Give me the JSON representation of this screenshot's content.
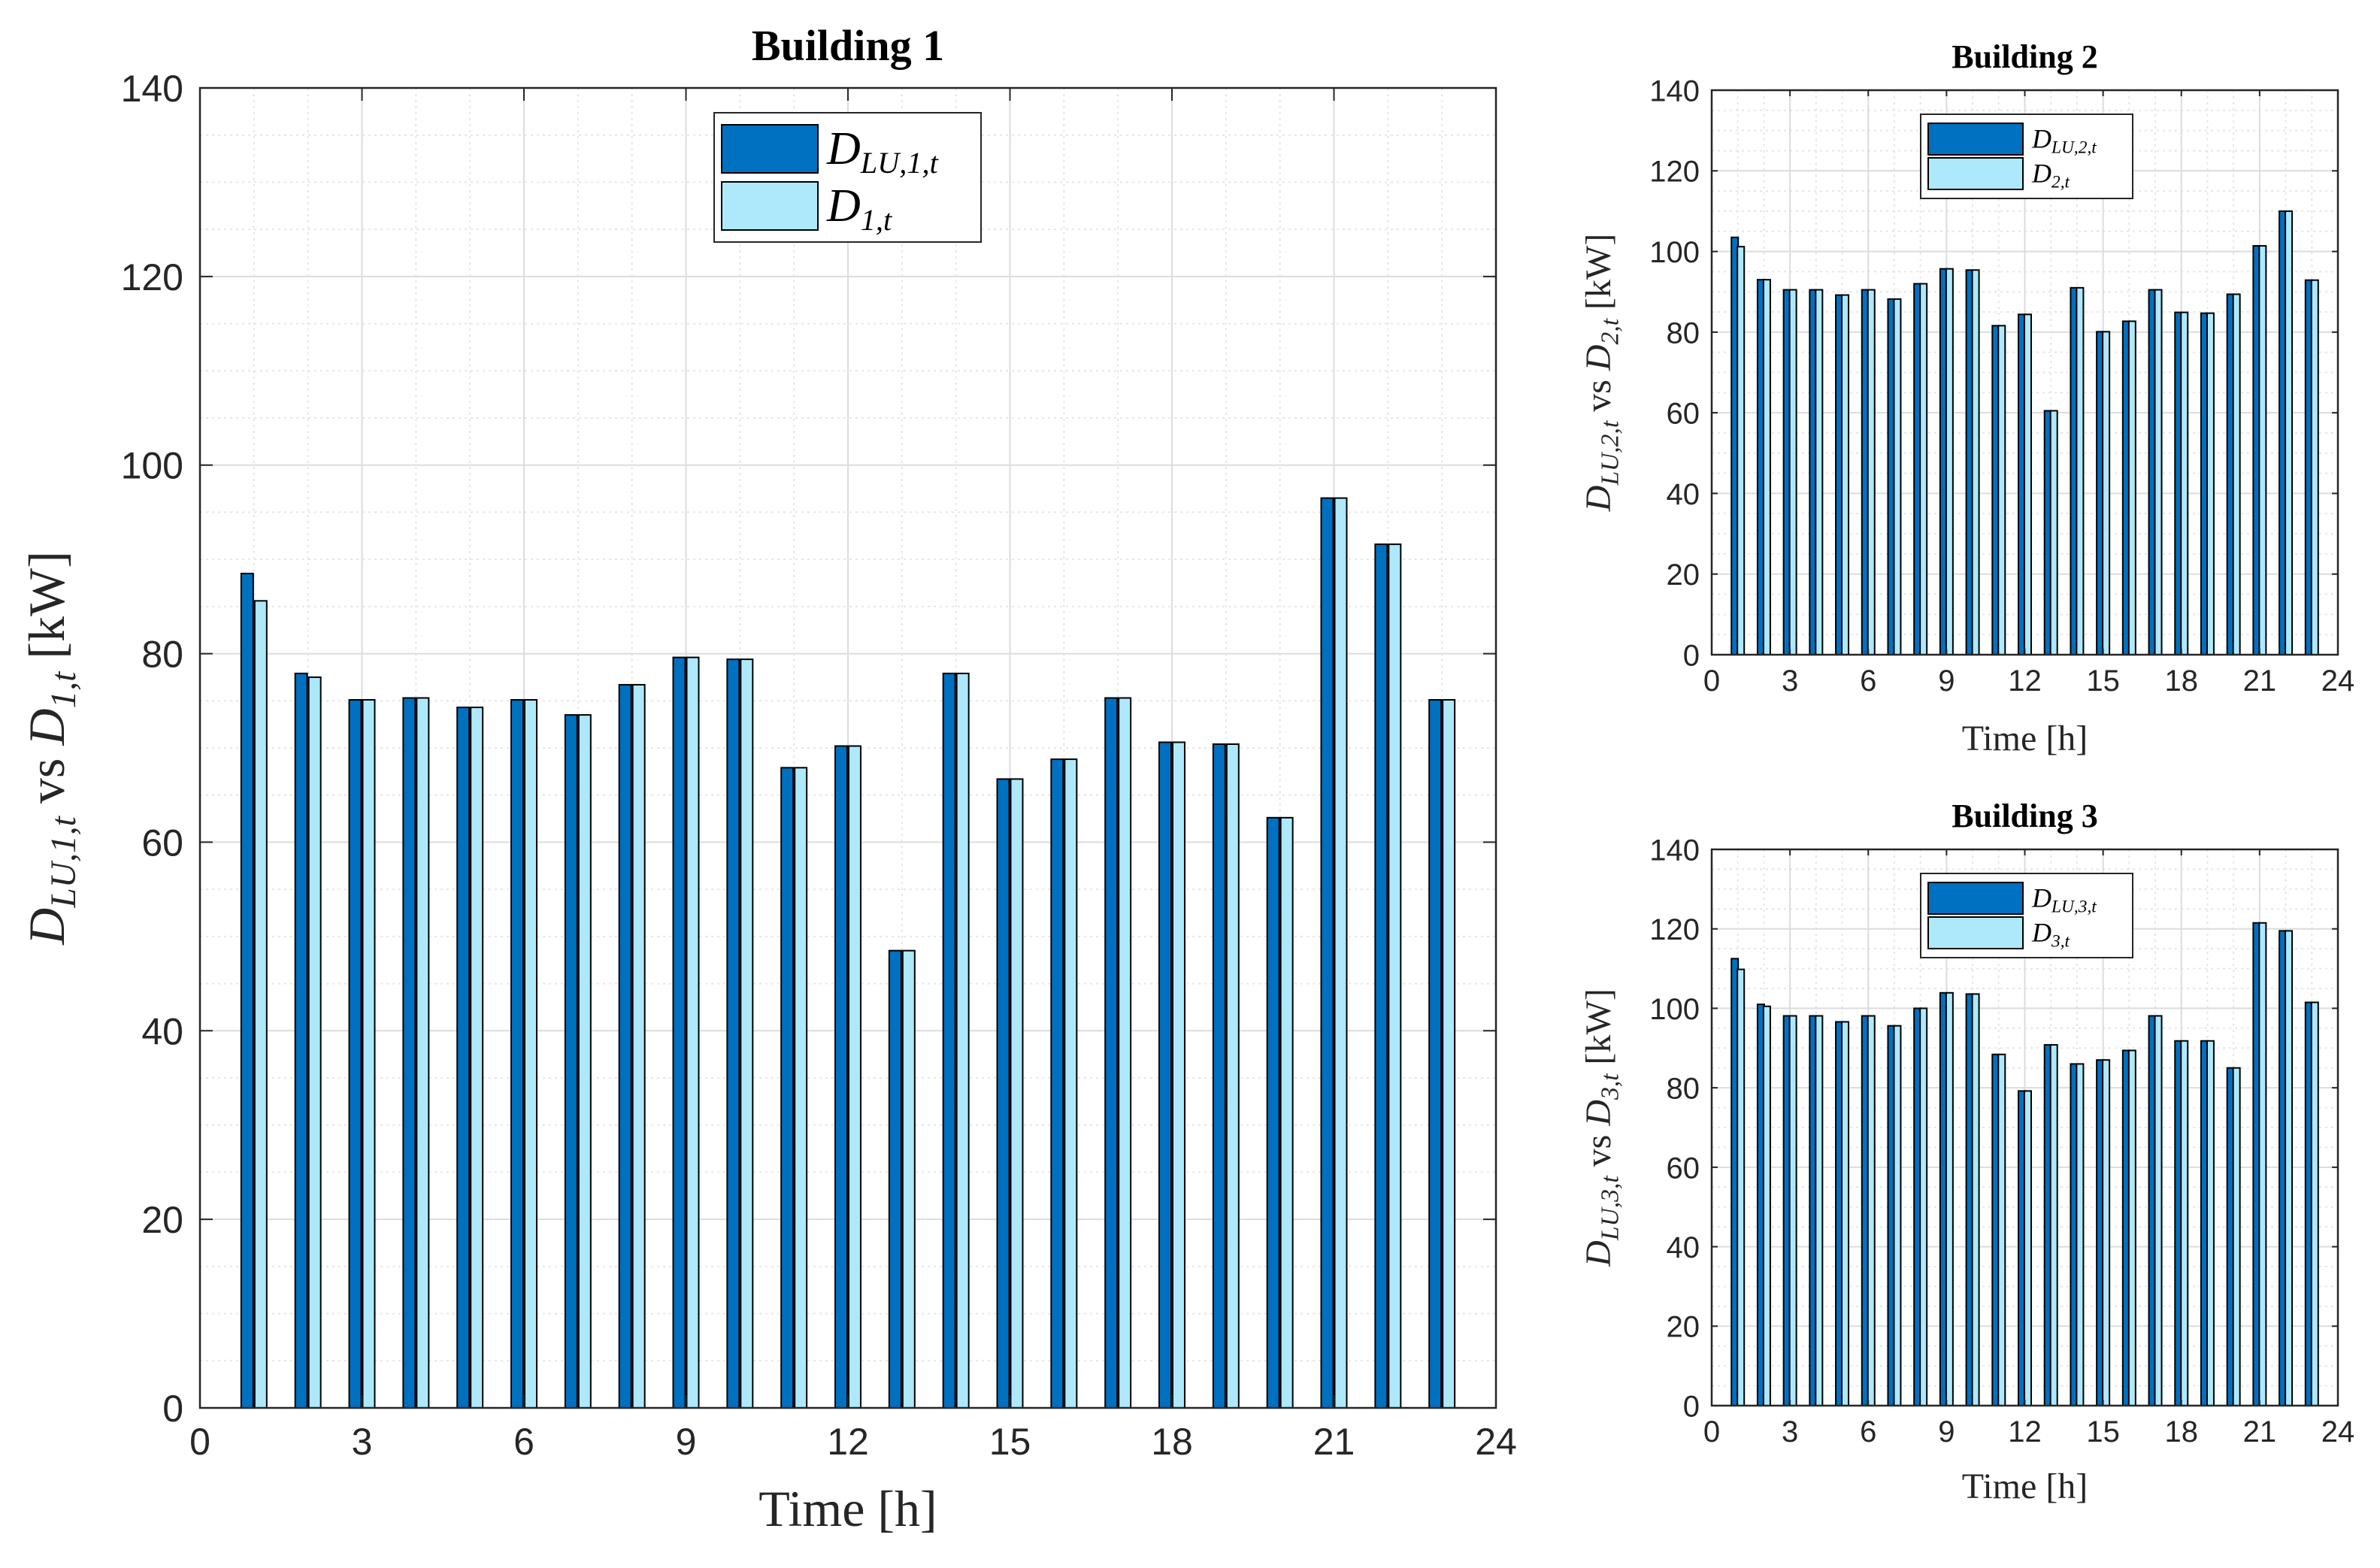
{
  "colors": {
    "series_dark": "#0070C0",
    "series_light": "#AEE9FB",
    "bar_edge": "#000000",
    "grid_major": "#dcdcdc",
    "grid_minor": "#e6e6e6",
    "axes": "#262626"
  },
  "chart_data": [
    {
      "id": "b1",
      "type": "bar",
      "title": "Building 1",
      "xlabel": "Time [h]",
      "ylabel": "D_{LU,1,t} vs D_{1,t} [kW]",
      "ylabel_parts": {
        "a_main": "D",
        "a_sub": "LU,1,t",
        "vs": "vs",
        "b_main": "D",
        "b_sub": "1,t",
        "unit": "[kW]"
      },
      "xlim": [
        0,
        24
      ],
      "ylim": [
        0,
        140
      ],
      "xticks": [
        0,
        3,
        6,
        9,
        12,
        15,
        18,
        21,
        24
      ],
      "yticks": [
        0,
        20,
        40,
        60,
        80,
        100,
        120,
        140
      ],
      "grid": true,
      "legend_position": "top-center",
      "categories": [
        1,
        2,
        3,
        4,
        5,
        6,
        7,
        8,
        9,
        10,
        11,
        12,
        13,
        14,
        15,
        16,
        17,
        18,
        19,
        20,
        21,
        22,
        23
      ],
      "series": [
        {
          "name": "D_{LU,1,t}",
          "legend_main": "D",
          "legend_sub": "LU,1,t",
          "values": [
            88.5,
            77.9,
            75.1,
            75.3,
            74.3,
            75.1,
            73.5,
            76.7,
            79.6,
            79.4,
            67.9,
            70.2,
            48.5,
            77.9,
            66.7,
            68.8,
            75.3,
            70.6,
            70.4,
            62.6,
            96.5,
            91.6,
            75.1
          ]
        },
        {
          "name": "D_{1,t}",
          "legend_main": "D",
          "legend_sub": "1,t",
          "values": [
            85.6,
            77.5,
            75.1,
            75.3,
            74.3,
            75.1,
            73.5,
            76.7,
            79.6,
            79.4,
            67.9,
            70.2,
            48.5,
            77.9,
            66.7,
            68.8,
            75.3,
            70.6,
            70.4,
            62.6,
            96.5,
            91.6,
            75.1
          ]
        }
      ]
    },
    {
      "id": "b2",
      "type": "bar",
      "title": "Building 2",
      "xlabel": "Time [h]",
      "ylabel": "D_{LU,2,t} vs D_{2,t} [kW]",
      "ylabel_parts": {
        "a_main": "D",
        "a_sub": "LU,2,t",
        "vs": "vs",
        "b_main": "D",
        "b_sub": "2,t",
        "unit": "[kW]"
      },
      "xlim": [
        0,
        24
      ],
      "ylim": [
        0,
        140
      ],
      "xticks": [
        0,
        3,
        6,
        9,
        12,
        15,
        18,
        21,
        24
      ],
      "yticks": [
        0,
        20,
        40,
        60,
        80,
        100,
        120,
        140
      ],
      "grid": true,
      "legend_position": "top-center",
      "categories": [
        1,
        2,
        3,
        4,
        5,
        6,
        7,
        8,
        9,
        10,
        11,
        12,
        13,
        14,
        15,
        16,
        17,
        18,
        19,
        20,
        21,
        22,
        23
      ],
      "series": [
        {
          "name": "D_{LU,2,t}",
          "legend_main": "D",
          "legend_sub": "LU,2,t",
          "values": [
            103.5,
            93.0,
            90.5,
            90.5,
            89.2,
            90.5,
            88.2,
            92.0,
            95.7,
            95.4,
            81.6,
            84.4,
            60.5,
            91.0,
            80.1,
            82.7,
            90.5,
            84.9,
            84.7,
            89.4,
            101.4,
            110.0,
            92.9
          ]
        },
        {
          "name": "D_{2,t}",
          "legend_main": "D",
          "legend_sub": "2,t",
          "values": [
            101.2,
            93.0,
            90.5,
            90.5,
            89.2,
            90.5,
            88.2,
            92.0,
            95.7,
            95.4,
            81.6,
            84.4,
            60.5,
            91.0,
            80.1,
            82.7,
            90.5,
            84.9,
            84.7,
            89.4,
            101.4,
            110.0,
            92.9
          ]
        }
      ]
    },
    {
      "id": "b3",
      "type": "bar",
      "title": "Building 3",
      "xlabel": "Time [h]",
      "ylabel": "D_{LU,3,t} vs D_{3,t} [kW]",
      "ylabel_parts": {
        "a_main": "D",
        "a_sub": "LU,3,t",
        "vs": "vs",
        "b_main": "D",
        "b_sub": "3,t",
        "unit": "[kW]"
      },
      "xlim": [
        0,
        24
      ],
      "ylim": [
        0,
        140
      ],
      "xticks": [
        0,
        3,
        6,
        9,
        12,
        15,
        18,
        21,
        24
      ],
      "yticks": [
        0,
        20,
        40,
        60,
        80,
        100,
        120,
        140
      ],
      "grid": true,
      "legend_position": "top-center",
      "categories": [
        1,
        2,
        3,
        4,
        5,
        6,
        7,
        8,
        9,
        10,
        11,
        12,
        13,
        14,
        15,
        16,
        17,
        18,
        19,
        20,
        21,
        22,
        23
      ],
      "series": [
        {
          "name": "D_{LU,3,t}",
          "legend_main": "D",
          "legend_sub": "LU,3,t",
          "values": [
            112.5,
            101.0,
            98.1,
            98.1,
            96.6,
            98.1,
            95.6,
            100.0,
            103.9,
            103.6,
            88.4,
            79.2,
            90.8,
            86.0,
            87.0,
            89.4,
            98.1,
            91.8,
            91.8,
            85.0,
            121.5,
            119.5,
            101.5
          ]
        },
        {
          "name": "D_{3,t}",
          "legend_main": "D",
          "legend_sub": "3,t",
          "values": [
            109.8,
            100.5,
            98.1,
            98.1,
            96.6,
            98.1,
            95.6,
            100.0,
            103.9,
            103.6,
            88.4,
            79.2,
            90.8,
            86.0,
            87.0,
            89.4,
            98.1,
            91.8,
            91.8,
            85.0,
            121.5,
            119.5,
            101.5
          ]
        }
      ]
    }
  ]
}
